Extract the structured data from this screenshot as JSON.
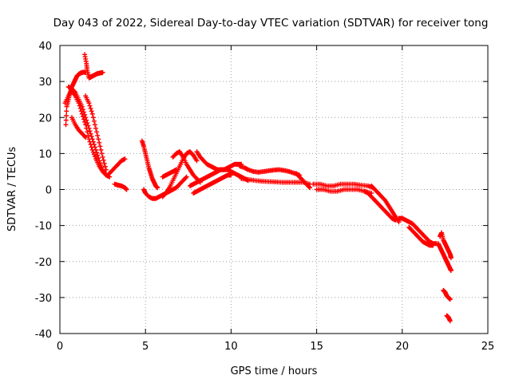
{
  "chart_data": {
    "type": "scatter",
    "title": "Day 043 of 2022, Sidereal Day-to-day VTEC variation (SDTVAR) for receiver tong",
    "xlabel": "GPS time / hours",
    "ylabel": "SDTVAR / TECUs",
    "xlim": [
      0,
      25
    ],
    "ylim": [
      -40,
      40
    ],
    "xticks": [
      0,
      5,
      10,
      15,
      20,
      25
    ],
    "yticks": [
      -40,
      -30,
      -20,
      -10,
      0,
      10,
      20,
      30,
      40
    ],
    "grid": true,
    "marker": "+",
    "color": "#ff0000",
    "series": [
      {
        "name": "trace-1",
        "x": [
          0.35,
          0.4,
          0.5,
          0.6,
          0.7,
          0.8,
          0.9,
          1.0,
          1.1,
          1.2,
          1.3,
          1.4,
          1.5
        ],
        "y": [
          18,
          23,
          25,
          27,
          28.5,
          29.5,
          30.5,
          31.5,
          32,
          32.3,
          32.5,
          32.6,
          32.5
        ]
      },
      {
        "name": "trace-2",
        "x": [
          1.45,
          1.55,
          1.6,
          1.7,
          1.8,
          1.9,
          2.0,
          2.1,
          2.2,
          2.3,
          2.4,
          2.5
        ],
        "y": [
          37.5,
          35,
          33,
          31,
          31.2,
          31.5,
          31.7,
          32,
          32.2,
          32.3,
          32.4,
          32.5
        ]
      },
      {
        "name": "trace-3",
        "x": [
          0.3,
          0.5,
          0.7,
          0.9,
          1.1,
          1.3,
          1.5,
          1.7,
          1.9,
          2.1,
          2.3,
          2.5,
          2.7,
          2.9
        ],
        "y": [
          24,
          26,
          27.5,
          26,
          24,
          21,
          18,
          14,
          11,
          8.5,
          6.5,
          5,
          4,
          3.5
        ]
      },
      {
        "name": "trace-4",
        "x": [
          0.5,
          0.7,
          0.9,
          1.1,
          1.3,
          1.5,
          1.7,
          1.9,
          2.1,
          2.3,
          2.5,
          2.7
        ],
        "y": [
          28.5,
          28,
          27,
          25,
          23,
          20,
          17,
          14,
          11,
          8,
          5.5,
          4
        ]
      },
      {
        "name": "trace-5",
        "x": [
          1.5,
          1.7,
          1.9,
          2.1,
          2.3,
          2.5,
          2.7
        ],
        "y": [
          26,
          24,
          21,
          17,
          13,
          9,
          5.5
        ]
      },
      {
        "name": "trace-6",
        "x": [
          0.7,
          0.9,
          1.1,
          1.3,
          1.5
        ],
        "y": [
          20,
          18,
          16.5,
          15.5,
          14.5
        ]
      },
      {
        "name": "trace-7",
        "x": [
          2.8,
          3.0,
          3.2,
          3.4,
          3.6,
          3.8
        ],
        "y": [
          4,
          5,
          6,
          7,
          8,
          8.5
        ]
      },
      {
        "name": "trace-8",
        "x": [
          3.2,
          3.4,
          3.6,
          3.8,
          3.9
        ],
        "y": [
          1.5,
          1.2,
          1,
          0.5,
          0
        ]
      },
      {
        "name": "trace-9",
        "x": [
          4.8,
          4.9,
          5.0,
          5.1,
          5.2,
          5.3,
          5.4,
          5.5,
          5.6,
          5.7
        ],
        "y": [
          13.5,
          12,
          10,
          8,
          6,
          4.5,
          3,
          2,
          1,
          0.5
        ]
      },
      {
        "name": "trace-10",
        "x": [
          4.9,
          5.0,
          5.2,
          5.4,
          5.6,
          5.8,
          6.0,
          6.2,
          6.4,
          6.6,
          6.8,
          7.0,
          7.2,
          7.4
        ],
        "y": [
          0,
          -1,
          -2,
          -2.5,
          -2.5,
          -2,
          -1.5,
          -1,
          -0.5,
          0,
          0.5,
          1.5,
          2.5,
          3.5
        ]
      },
      {
        "name": "trace-11",
        "x": [
          6.0,
          6.2,
          6.4,
          6.6,
          6.8,
          7.0,
          7.2,
          7.4,
          7.6,
          7.8,
          8.0
        ],
        "y": [
          -2,
          -1,
          0.5,
          2.5,
          4.5,
          6.5,
          8.5,
          10,
          10.5,
          9.5,
          8
        ]
      },
      {
        "name": "trace-12",
        "x": [
          6.6,
          6.8,
          7.0,
          7.2,
          7.4,
          7.6,
          7.8,
          8.0,
          8.2
        ],
        "y": [
          9,
          10,
          10.5,
          9,
          7,
          5.5,
          4,
          3,
          2
        ]
      },
      {
        "name": "trace-13",
        "x": [
          6.0,
          6.2,
          6.4,
          6.6,
          6.8
        ],
        "y": [
          3.5,
          4,
          4.5,
          5,
          5.5
        ]
      },
      {
        "name": "trace-14",
        "x": [
          8.0,
          8.2,
          8.4,
          8.6,
          8.8,
          9.0,
          9.2,
          9.4,
          9.6,
          9.8,
          10.0,
          10.2,
          10.4,
          10.6
        ],
        "y": [
          10.5,
          9,
          8,
          7,
          6.5,
          6,
          5.5,
          5.5,
          5.5,
          6,
          6.5,
          7,
          7,
          7
        ]
      },
      {
        "name": "trace-15",
        "x": [
          7.6,
          7.8,
          8.0,
          8.2,
          8.4,
          8.6,
          8.8,
          9.0,
          9.2,
          9.4,
          9.6,
          9.8,
          10.0,
          10.2,
          10.4,
          10.6,
          10.8,
          11.0
        ],
        "y": [
          1,
          1.5,
          2,
          2.5,
          3,
          3.5,
          4,
          4.5,
          5,
          5.5,
          5.5,
          5.5,
          5,
          4.5,
          4,
          3.5,
          3,
          2.5
        ]
      },
      {
        "name": "trace-16",
        "x": [
          7.8,
          8.0,
          8.2,
          8.4,
          8.6,
          8.8,
          9.0,
          9.2,
          9.4,
          9.6,
          9.8,
          10.0
        ],
        "y": [
          -1,
          -0.5,
          0,
          0.5,
          1,
          1.5,
          2,
          2.5,
          3,
          3.5,
          4,
          4
        ]
      },
      {
        "name": "trace-17",
        "x": [
          10.5,
          10.8,
          11.0,
          11.3,
          11.6,
          11.9,
          12.2,
          12.5,
          12.8,
          13.1,
          13.4,
          13.7,
          14.0
        ],
        "y": [
          6.5,
          6,
          5.5,
          5,
          4.8,
          5,
          5.2,
          5.4,
          5.5,
          5.3,
          5,
          4.5,
          4
        ]
      },
      {
        "name": "trace-18",
        "x": [
          10.6,
          11.0,
          11.4,
          11.8,
          12.2,
          12.6,
          13.0,
          13.4,
          13.8,
          14.2,
          14.6
        ],
        "y": [
          3,
          2.8,
          2.5,
          2.3,
          2.2,
          2.1,
          2,
          2,
          2,
          2,
          1.5
        ]
      },
      {
        "name": "trace-19",
        "x": [
          13.8,
          14.0,
          14.2,
          14.4,
          14.6
        ],
        "y": [
          4.5,
          3.5,
          2.5,
          1.5,
          0.5
        ]
      },
      {
        "name": "trace-20",
        "x": [
          14.8,
          15.2,
          15.6,
          16.0,
          16.4,
          16.8,
          17.2,
          17.6,
          18.0,
          18.3
        ],
        "y": [
          1.5,
          1.5,
          1,
          1,
          1.5,
          1.5,
          1.5,
          1.2,
          1,
          0.5
        ]
      },
      {
        "name": "trace-21",
        "x": [
          15.0,
          15.4,
          15.8,
          16.2,
          16.6,
          17.0,
          17.4,
          17.8,
          18.2
        ],
        "y": [
          0,
          0,
          -0.5,
          -0.5,
          0,
          0,
          0,
          -0.5,
          -1
        ]
      },
      {
        "name": "trace-22",
        "x": [
          18.2,
          18.4,
          18.6,
          18.8,
          19.0,
          19.2,
          19.4,
          19.6,
          19.8
        ],
        "y": [
          1,
          0,
          -1,
          -2,
          -3,
          -4.5,
          -6,
          -7.5,
          -9
        ]
      },
      {
        "name": "trace-23",
        "x": [
          17.8,
          18.0,
          18.2,
          18.4,
          18.6,
          18.8,
          19.0,
          19.2,
          19.4,
          19.6
        ],
        "y": [
          -0.5,
          -1,
          -2,
          -3,
          -4,
          -5,
          -6,
          -7,
          -8,
          -8.5
        ]
      },
      {
        "name": "trace-24",
        "x": [
          19.8,
          20.0,
          20.2,
          20.4,
          20.6,
          20.8,
          21.0,
          21.2,
          21.4,
          21.6,
          21.8,
          22.0
        ],
        "y": [
          -8,
          -8,
          -8.5,
          -9,
          -9.5,
          -10.5,
          -11.5,
          -12.5,
          -13.5,
          -14.5,
          -15,
          -15
        ]
      },
      {
        "name": "trace-25",
        "x": [
          20.4,
          20.6,
          20.8,
          21.0,
          21.2,
          21.4,
          21.6,
          21.8
        ],
        "y": [
          -10.5,
          -11.5,
          -12.5,
          -13.5,
          -14.5,
          -15,
          -15.5,
          -15.5
        ]
      },
      {
        "name": "trace-26",
        "x": [
          22.2,
          22.3,
          22.4,
          22.5,
          22.6,
          22.7,
          22.8,
          22.85
        ],
        "y": [
          -13,
          -12,
          -14,
          -15,
          -16,
          -17,
          -18,
          -19
        ]
      },
      {
        "name": "trace-27",
        "x": [
          22.1,
          22.2,
          22.3,
          22.4,
          22.5,
          22.6,
          22.7,
          22.8,
          22.85
        ],
        "y": [
          -15,
          -16,
          -17,
          -18,
          -19,
          -20,
          -21,
          -22,
          -22.5
        ]
      },
      {
        "name": "trace-28",
        "x": [
          22.4,
          22.5,
          22.6,
          22.7,
          22.8
        ],
        "y": [
          -28,
          -28.5,
          -29.5,
          -30,
          -30.5
        ]
      },
      {
        "name": "trace-29",
        "x": [
          22.6,
          22.7,
          22.8
        ],
        "y": [
          -35,
          -35.5,
          -36.5
        ]
      }
    ]
  }
}
